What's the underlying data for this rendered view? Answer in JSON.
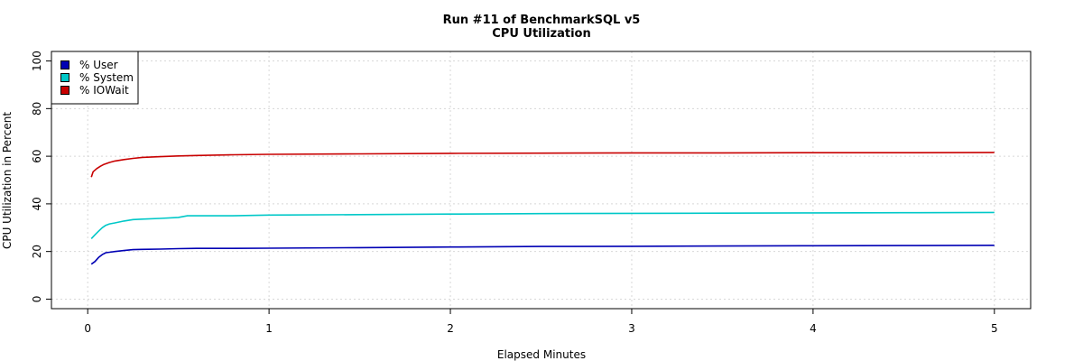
{
  "chart_data": {
    "type": "line",
    "title": "Run #11 of BenchmarkSQL v5",
    "subtitle": "CPU Utilization",
    "xlabel": "Elapsed Minutes",
    "ylabel": "CPU Utilization in Percent",
    "xlim": [
      -0.2,
      5.2
    ],
    "ylim": [
      -4,
      104
    ],
    "xticks": [
      0,
      1,
      2,
      3,
      4,
      5
    ],
    "yticks": [
      0,
      20,
      40,
      60,
      80,
      100
    ],
    "grid": true,
    "legend_position": "top-left",
    "series": [
      {
        "name": "% User",
        "color": "#0000b4",
        "x": [
          0.02,
          0.04,
          0.06,
          0.08,
          0.1,
          0.12,
          0.15,
          0.2,
          0.25,
          0.3,
          0.4,
          0.5,
          0.6,
          0.8,
          1.0,
          1.5,
          2.0,
          2.5,
          3.0,
          3.5,
          4.0,
          4.5,
          5.0
        ],
        "y": [
          14.7,
          15.8,
          17.5,
          18.7,
          19.5,
          19.7,
          20.0,
          20.4,
          20.8,
          20.9,
          21.0,
          21.2,
          21.3,
          21.3,
          21.4,
          21.6,
          21.9,
          22.1,
          22.2,
          22.3,
          22.4,
          22.5,
          22.6
        ]
      },
      {
        "name": "% System",
        "color": "#00c8c8",
        "x": [
          0.02,
          0.04,
          0.06,
          0.08,
          0.1,
          0.12,
          0.15,
          0.2,
          0.25,
          0.3,
          0.4,
          0.5,
          0.55,
          0.6,
          0.8,
          1.0,
          1.5,
          2.0,
          2.5,
          3.0,
          3.5,
          4.0,
          4.5,
          5.0
        ],
        "y": [
          25.4,
          27.0,
          28.5,
          30.0,
          31.0,
          31.6,
          32.0,
          32.8,
          33.4,
          33.6,
          33.9,
          34.3,
          35.0,
          35.0,
          35.0,
          35.3,
          35.5,
          35.7,
          35.9,
          36.0,
          36.1,
          36.2,
          36.3,
          36.4
        ]
      },
      {
        "name": "% IOWait",
        "color": "#c80000",
        "x": [
          0.02,
          0.03,
          0.05,
          0.07,
          0.09,
          0.12,
          0.15,
          0.2,
          0.25,
          0.3,
          0.4,
          0.5,
          0.6,
          0.8,
          1.0,
          1.5,
          2.0,
          2.5,
          3.0,
          3.5,
          4.0,
          4.5,
          5.0
        ],
        "y": [
          51.2,
          53.5,
          54.8,
          55.8,
          56.6,
          57.4,
          58.0,
          58.6,
          59.1,
          59.5,
          59.8,
          60.1,
          60.3,
          60.6,
          60.8,
          61.0,
          61.2,
          61.3,
          61.4,
          61.4,
          61.5,
          61.5,
          61.6
        ]
      }
    ]
  }
}
